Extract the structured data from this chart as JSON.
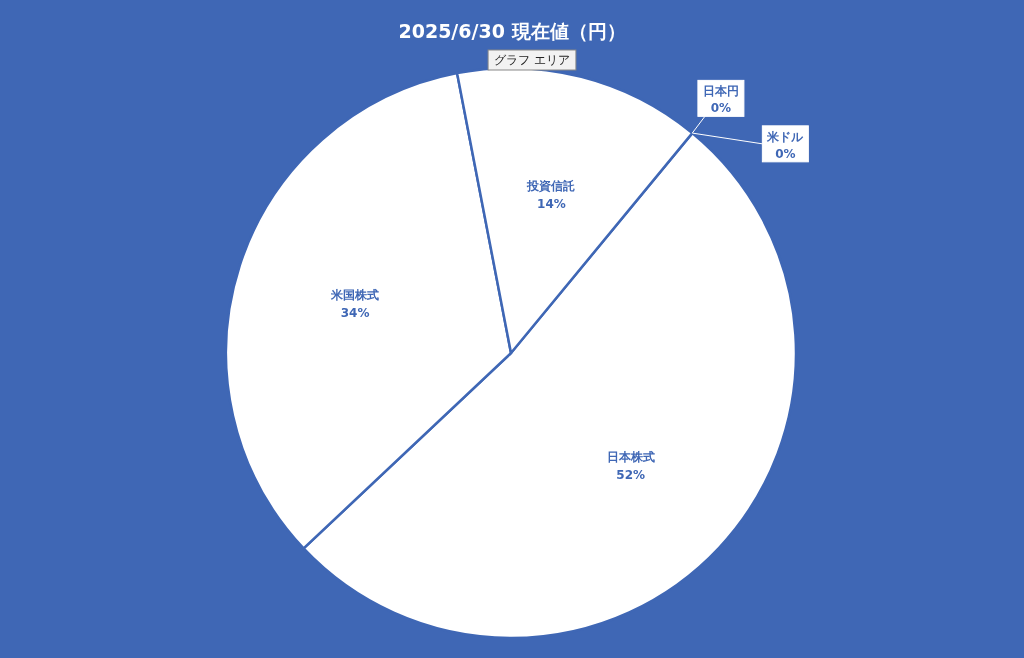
{
  "chart_data": {
    "type": "pie",
    "title": "2025/6/30 現在値（円）",
    "categories": [
      "日本株式",
      "米国株式",
      "投資信託",
      "日本円",
      "米ドル"
    ],
    "values": [
      52,
      34,
      14,
      0,
      0
    ],
    "colors": [
      "#ffffff",
      "#ffffff",
      "#ffffff",
      "#ffffff",
      "#ffffff"
    ],
    "value_labels": [
      "52%",
      "34%",
      "14%",
      "0%",
      "0%"
    ],
    "annotations": [
      "グラフ エリア"
    ]
  }
}
